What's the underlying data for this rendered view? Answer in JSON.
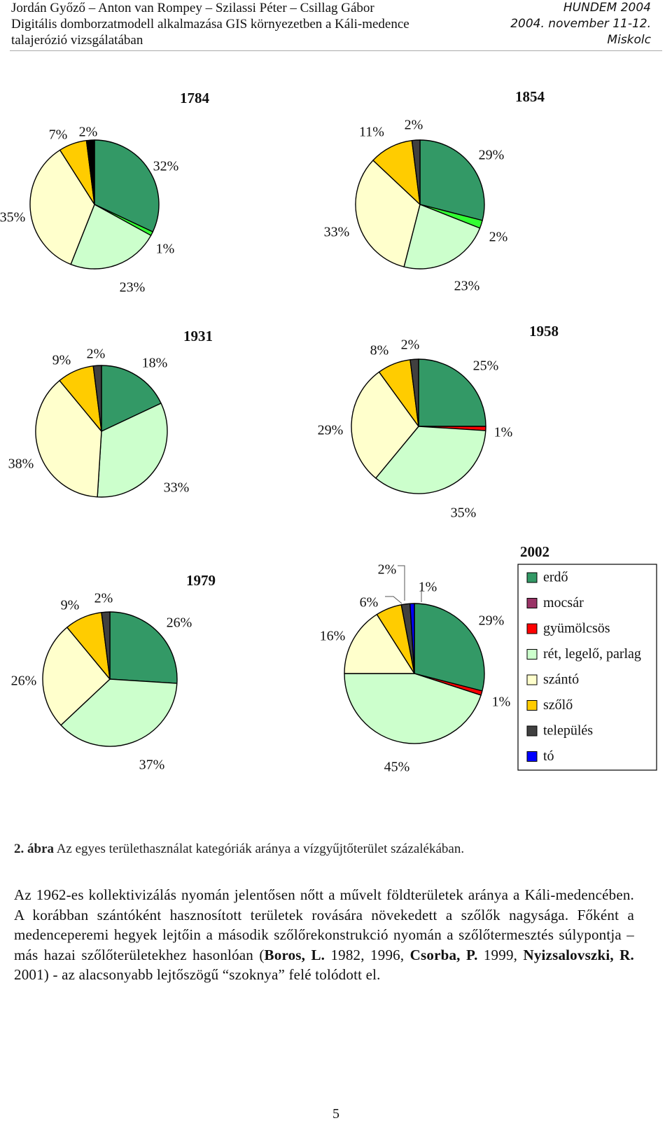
{
  "header": {
    "left_lines": [
      "Jordán Győző – Anton van Rompey – Szilassi Péter – Csillag Gábor",
      "Digitális domborzatmodell alkalmazása GIS környezetben a Káli-medence",
      "talajerózió vizsgálatában"
    ],
    "right_lines": [
      "HUNDEM 2004",
      "2004. november 11-12.",
      "Miskolc"
    ]
  },
  "chart_data": {
    "type": "pie",
    "categories": [
      "erdő",
      "mocsár",
      "gyümölcsös",
      "rét, legelő, parlag",
      "szántó",
      "szőlő",
      "település",
      "tó"
    ],
    "colors": [
      "#339966",
      "#993366",
      "#ff0000",
      "#ccffcc",
      "#ffffcc",
      "#ffcc00",
      "#404040",
      "#0000ff"
    ],
    "legend_title": "2002",
    "legend_position": "right of the 2002 chart",
    "charts": [
      {
        "title": "1784",
        "values": [
          32,
          0,
          1,
          23,
          35,
          7,
          2,
          0
        ],
        "label_values": [
          "32%",
          "1%",
          "23%",
          "35%",
          "7%",
          "2%"
        ],
        "slice_colors": [
          "#339966",
          "#33ff33",
          "#ccffcc",
          "#ffffcc",
          "#ffcc00",
          "#000000"
        ]
      },
      {
        "title": "1854",
        "values": [
          29,
          0,
          2,
          23,
          33,
          11,
          2,
          0
        ],
        "label_values": [
          "29%",
          "2%",
          "23%",
          "33%",
          "11%",
          "2%"
        ],
        "slice_colors": [
          "#339966",
          "#33ff33",
          "#ccffcc",
          "#ffffcc",
          "#ffcc00",
          "#404040"
        ]
      },
      {
        "title": "1931",
        "values": [
          18,
          0,
          0,
          33,
          38,
          9,
          2,
          0
        ],
        "label_values": [
          "18%",
          "33%",
          "38%",
          "9%",
          "2%"
        ]
      },
      {
        "title": "1958",
        "values": [
          25,
          0,
          1,
          35,
          29,
          8,
          2,
          0
        ],
        "label_values": [
          "25%",
          "1%",
          "35%",
          "29%",
          "8%",
          "2%"
        ]
      },
      {
        "title": "1979",
        "values": [
          26,
          0,
          0,
          37,
          26,
          9,
          2,
          0
        ],
        "label_values": [
          "26%",
          "37%",
          "26%",
          "9%",
          "2%"
        ]
      },
      {
        "title": "2002",
        "values": [
          29,
          0,
          1,
          45,
          16,
          6,
          2,
          1
        ],
        "label_values": [
          "29%",
          "1%",
          "45%",
          "16%",
          "6%",
          "2%",
          "1%"
        ]
      }
    ]
  },
  "caption": {
    "bold": "2. ábra",
    "text": " Az egyes területhasználat kategóriák aránya a vízgyűjtőterület százalékában."
  },
  "paragraph": [
    {
      "t": "Az 1962-es kollektivizálás nyomán jelentősen nőtt a művelt földterületek aránya a Káli-medencében. A korábban szántóként hasznosított területek rovására növekedett a szőlők nagysága. Főként a medenceperemi hegyek lejtőin a második szőlőrekonstrukció nyomán a szőlőtermesztés súlypontja – más hazai szőlőterületekhez hasonlóan ("
    },
    {
      "b": "Boros, L."
    },
    {
      "t": " 1982, 1996, "
    },
    {
      "b": "Csorba, P."
    },
    {
      "t": " 1999, "
    },
    {
      "b": "Nyizsalovszki, R."
    },
    {
      "t": " 2001) - az alacsonyabb lejtőszögű “szoknya” felé tolódott el."
    }
  ],
  "page_number": "5"
}
